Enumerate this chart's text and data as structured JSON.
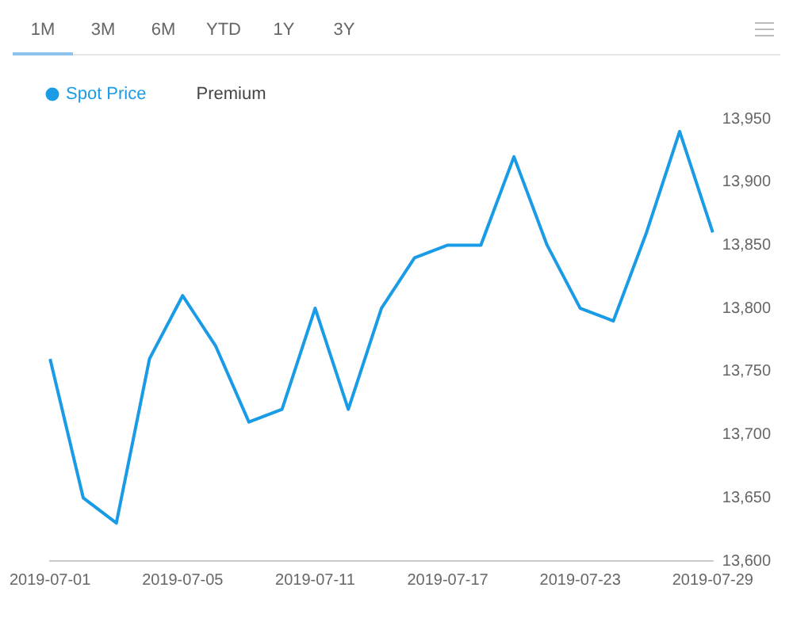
{
  "chart_data": {
    "type": "line",
    "categories": [
      "2019-07-01",
      null,
      null,
      null,
      "2019-07-05",
      null,
      null,
      null,
      "2019-07-11",
      null,
      null,
      null,
      "2019-07-17",
      null,
      null,
      null,
      "2019-07-23",
      null,
      null,
      null,
      "2019-07-29"
    ],
    "series": [
      {
        "name": "Spot Price",
        "color": "#1a9be6",
        "values": [
          13760,
          13650,
          13630,
          13760,
          13810,
          13770,
          13710,
          13720,
          13800,
          13720,
          13800,
          13840,
          13850,
          13850,
          13920,
          13850,
          13800,
          13790,
          13860,
          13940,
          13860
        ]
      },
      {
        "name": "Premium",
        "values": [
          null,
          null,
          null,
          null,
          null,
          null,
          null,
          null,
          null,
          null,
          null,
          null,
          null,
          null,
          null,
          null,
          null,
          null,
          null,
          null,
          null
        ]
      }
    ],
    "ylim": [
      13600,
      13950
    ],
    "yticks": [
      {
        "value": 13600,
        "label": "13,600"
      },
      {
        "value": 13650,
        "label": "13,650"
      },
      {
        "value": 13700,
        "label": "13,700"
      },
      {
        "value": 13750,
        "label": "13,750"
      },
      {
        "value": 13800,
        "label": "13,800"
      },
      {
        "value": 13850,
        "label": "13,850"
      },
      {
        "value": 13900,
        "label": "13,900"
      },
      {
        "value": 13950,
        "label": "13,950"
      }
    ],
    "annotations": [
      "1M",
      "3M",
      "6M",
      "YTD",
      "1Y",
      "3Y"
    ],
    "grid": false,
    "legend": "top left",
    "marker": "none",
    "line_style": "solid"
  }
}
